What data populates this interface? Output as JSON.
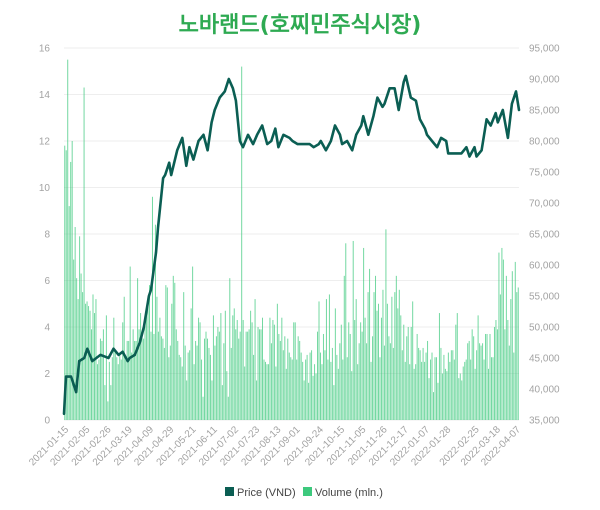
{
  "chart_data": {
    "type": "line+bar",
    "title": "노바랜드(호찌민주식시장)",
    "x_tick_labels": [
      "2021-01-15",
      "2021-02-05",
      "2021-02-26",
      "2021-03-19",
      "2021-04-09",
      "2021-04-29",
      "2021-05-21",
      "2021-06-11",
      "2021-07-02",
      "2021-07-23",
      "2021-08-13",
      "2021-09-01",
      "2021-09-24",
      "2021-10-15",
      "2021-11-05",
      "2021-11-26",
      "2021-12-17",
      "2022-01-07",
      "2022-01-28",
      "2022-02-25",
      "2022-03-18",
      "2022-04-07"
    ],
    "left_axis": {
      "ticks": [
        0,
        2,
        4,
        6,
        8,
        10,
        12,
        14,
        16
      ],
      "range": [
        0,
        16
      ],
      "unit": "mln."
    },
    "right_axis": {
      "ticks": [
        "35,000",
        "40,000",
        "45,000",
        "50,000",
        "55,000",
        "60,000",
        "65,000",
        "70,000",
        "75,000",
        "80,000",
        "85,000",
        "90,000",
        "95,000"
      ],
      "range": [
        35000,
        95000
      ],
      "unit": "VND"
    },
    "colors": {
      "price": "#0b5e53",
      "volume": "#3dc97d",
      "title": "#2eaa52"
    },
    "legend_placement": "bottom-center",
    "series": [
      {
        "name": "Price (VND)",
        "type": "line",
        "axis": "right",
        "x": [
          "2021-01-13",
          "2021-01-15",
          "2021-01-20",
          "2021-01-25",
          "2021-01-28",
          "2021-02-02",
          "2021-02-05",
          "2021-02-10",
          "2021-02-18",
          "2021-02-23",
          "2021-02-26",
          "2021-03-03",
          "2021-03-08",
          "2021-03-12",
          "2021-03-17",
          "2021-03-19",
          "2021-03-24",
          "2021-03-29",
          "2021-04-02",
          "2021-04-07",
          "2021-04-09",
          "2021-04-14",
          "2021-04-16",
          "2021-04-21",
          "2021-04-23",
          "2021-04-27",
          "2021-04-29",
          "2021-05-05",
          "2021-05-10",
          "2021-05-14",
          "2021-05-17",
          "2021-05-21",
          "2021-05-26",
          "2021-05-31",
          "2021-06-04",
          "2021-06-08",
          "2021-06-11",
          "2021-06-16",
          "2021-06-21",
          "2021-06-25",
          "2021-06-29",
          "2021-07-02",
          "2021-07-06",
          "2021-07-09",
          "2021-07-14",
          "2021-07-19",
          "2021-07-23",
          "2021-07-28",
          "2021-08-02",
          "2021-08-06",
          "2021-08-10",
          "2021-08-13",
          "2021-08-18",
          "2021-08-24",
          "2021-08-27",
          "2021-09-01",
          "2021-09-08",
          "2021-09-13",
          "2021-09-17",
          "2021-09-22",
          "2021-09-24",
          "2021-09-29",
          "2021-10-04",
          "2021-10-08",
          "2021-10-13",
          "2021-10-15",
          "2021-10-20",
          "2021-10-25",
          "2021-10-29",
          "2021-11-03",
          "2021-11-05",
          "2021-11-10",
          "2021-11-15",
          "2021-11-19",
          "2021-11-24",
          "2021-11-26",
          "2021-12-01",
          "2021-12-06",
          "2021-12-10",
          "2021-12-15",
          "2021-12-17",
          "2021-12-22",
          "2021-12-27",
          "2021-12-31",
          "2022-01-05",
          "2022-01-07",
          "2022-01-12",
          "2022-01-17",
          "2022-01-21",
          "2022-01-26",
          "2022-01-28",
          "2022-02-10",
          "2022-02-15",
          "2022-02-18",
          "2022-02-23",
          "2022-02-25",
          "2022-03-02",
          "2022-03-07",
          "2022-03-11",
          "2022-03-16",
          "2022-03-18",
          "2022-03-23",
          "2022-03-28",
          "2022-04-01",
          "2022-04-05",
          "2022-04-07",
          "2022-04-08"
        ],
        "values": [
          36000,
          42000,
          42000,
          39500,
          44500,
          45000,
          46500,
          44500,
          45500,
          45200,
          45000,
          46500,
          45500,
          46000,
          44500,
          45000,
          45500,
          47500,
          50000,
          55000,
          56000,
          62000,
          66000,
          74000,
          74500,
          76500,
          74500,
          78500,
          80500,
          76000,
          79000,
          77000,
          80000,
          81000,
          78500,
          83000,
          85000,
          87000,
          88000,
          90000,
          88500,
          86500,
          80000,
          79000,
          81000,
          79500,
          81000,
          82500,
          79500,
          80000,
          82000,
          79000,
          81000,
          80500,
          80000,
          79500,
          79500,
          79500,
          79000,
          79500,
          80000,
          78500,
          80000,
          82500,
          81000,
          79500,
          80000,
          78500,
          81000,
          82500,
          84000,
          81000,
          84000,
          87000,
          85500,
          86000,
          88500,
          88500,
          85000,
          89500,
          90500,
          87000,
          86500,
          83500,
          82000,
          81000,
          80000,
          79000,
          80500,
          80000,
          78000,
          78000,
          79000,
          77500,
          79000,
          77500,
          78500,
          83500,
          82500,
          84500,
          83000,
          85000,
          80500,
          86000,
          88000,
          86000,
          85000
        ]
      },
      {
        "name": "Volume (mln.)",
        "type": "bar",
        "axis": "left",
        "values": [
          11.8,
          11.6,
          15.5,
          9.2,
          11.1,
          12,
          6.9,
          8.3,
          6.1,
          5.2,
          7.9,
          6.3,
          5.5,
          14.3,
          5,
          5.1,
          4.9,
          4.7,
          3.9,
          5.4,
          4.6,
          5.2,
          2.4,
          2.6,
          3.5,
          3.4,
          3.9,
          1.5,
          4.5,
          0.8,
          2.5,
          1.5,
          2.7,
          4.4,
          2.9,
          2.7,
          2.4,
          2.9,
          2.6,
          4.2,
          5.3,
          2.6,
          3.4,
          3.4,
          6.6,
          2.9,
          3.9,
          3.4,
          3.4,
          6.1,
          3.9,
          4.6,
          3.6,
          3.5,
          4.5,
          4.8,
          5,
          5.8,
          3.8,
          9.6,
          3.7,
          8.4,
          5.3,
          3.8,
          4.4,
          3.6,
          3.5,
          3.1,
          5.8,
          5.7,
          2.7,
          3.2,
          5,
          6.2,
          5.9,
          3.9,
          3.4,
          2.8,
          2.7,
          2.3,
          5.5,
          3.2,
          1.7,
          2.9,
          3,
          4.8,
          6.6,
          2.4,
          3.4,
          3.2,
          4.4,
          4.2,
          2.6,
          1,
          3.5,
          3.8,
          3.5,
          3.1,
          2.8,
          1.7,
          4.5,
          3.2,
          3.6,
          4,
          3.8,
          4.6,
          1.5,
          3.3,
          4.7,
          2.1,
          1,
          6.1,
          3.1,
          4.5,
          4.8,
          3.9,
          4.3,
          3.5,
          3.8,
          15.2,
          4.3,
          2.3,
          3.8,
          3.8,
          3.9,
          4.7,
          4.2,
          2.8,
          5.2,
          1.7,
          4,
          3.9,
          3.9,
          4.4,
          2.6,
          2.5,
          2.4,
          2.4,
          4.4,
          3.3,
          4.3,
          4.1,
          2.3,
          5,
          3.7,
          3.4,
          4.4,
          3,
          3.6,
          2.2,
          3.5,
          2.9,
          2.7,
          2.6,
          4.2,
          4.2,
          2.6,
          3.6,
          3.4,
          2.9,
          2.5,
          1.7,
          2.6,
          2.8,
          1.6,
          2.9,
          3,
          1.9,
          2.4,
          2,
          3.8,
          5.1,
          2.9,
          2.4,
          3.7,
          3,
          5.2,
          2.6,
          5.4,
          2.5,
          3.1,
          1.5,
          4.8,
          2.8,
          2.2,
          3.3,
          4.1,
          2.6,
          6.2,
          7.6,
          2.7,
          4.2,
          3.7,
          2.1,
          7.7,
          4.3,
          5.2,
          2.4,
          3.3,
          4.2,
          3.8,
          7.4,
          4.4,
          3.3,
          5.5,
          6.5,
          2.5,
          3.6,
          5.5,
          6.2,
          4.7,
          5,
          2.7,
          4.4,
          5.6,
          3.2,
          8.2,
          5,
          3.6,
          3.3,
          5.3,
          3.1,
          5.5,
          6.2,
          4.8,
          5.6,
          4.5,
          3,
          4.1,
          2.5,
          3.6,
          4,
          2.4,
          4,
          5.1,
          2.2,
          2.4,
          3.7,
          3.1,
          3,
          2.5,
          3.1,
          2.5,
          2.9,
          3.4,
          1.8,
          2.6,
          2.9,
          1.2,
          2.7,
          2.7,
          1.6,
          4.6,
          3.1,
          2,
          2.8,
          2.2,
          2.1,
          2.9,
          2.5,
          3,
          3,
          2.6,
          4.1,
          4.6,
          1.8,
          2,
          1.7,
          2.3,
          2.5,
          2.6,
          3.3,
          3.4,
          2.6,
          3.9,
          3.6,
          2.2,
          3,
          4.5,
          3.3,
          3.2,
          3.3,
          2.6,
          3.7,
          3.7,
          2.2,
          3.7,
          2.7,
          2.7,
          4,
          4.3,
          3.9,
          7.2,
          5.4,
          7.4,
          6.9,
          3.9,
          6.2,
          4.3,
          3.2,
          5.2,
          6.4,
          2.9,
          6.8,
          5.5,
          5.7
        ]
      }
    ]
  }
}
